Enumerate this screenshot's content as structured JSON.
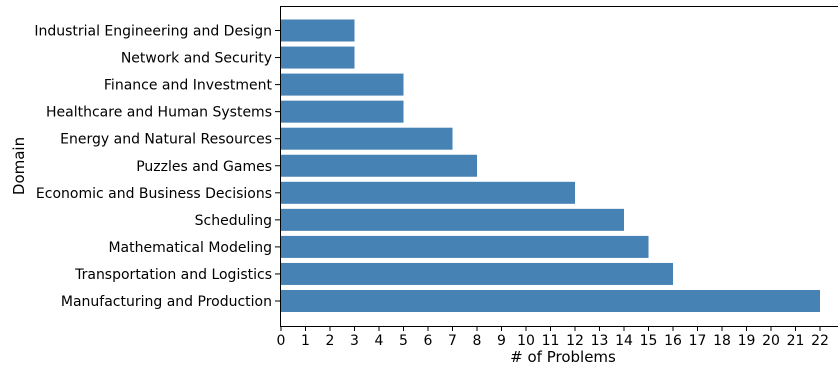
{
  "chart_data": {
    "type": "bar",
    "orientation": "horizontal",
    "xlabel": "# of Problems",
    "ylabel": "Domain",
    "xlim": [
      0,
      22.7
    ],
    "x_ticks": [
      0,
      1,
      2,
      3,
      4,
      5,
      6,
      7,
      8,
      9,
      10,
      11,
      12,
      13,
      14,
      15,
      16,
      17,
      18,
      19,
      20,
      21,
      22
    ],
    "grid": false,
    "bar_color": "#4682b4",
    "categories": [
      "Industrial Engineering and Design",
      "Network and Security",
      "Finance and Investment",
      "Healthcare and Human Systems",
      "Energy and Natural Resources",
      "Puzzles and Games",
      "Economic and Business Decisions",
      "Scheduling",
      "Mathematical Modeling",
      "Transportation and Logistics",
      "Manufacturing and Production"
    ],
    "values": [
      3,
      3,
      5,
      5,
      7,
      8,
      12,
      14,
      15,
      16,
      22
    ]
  }
}
